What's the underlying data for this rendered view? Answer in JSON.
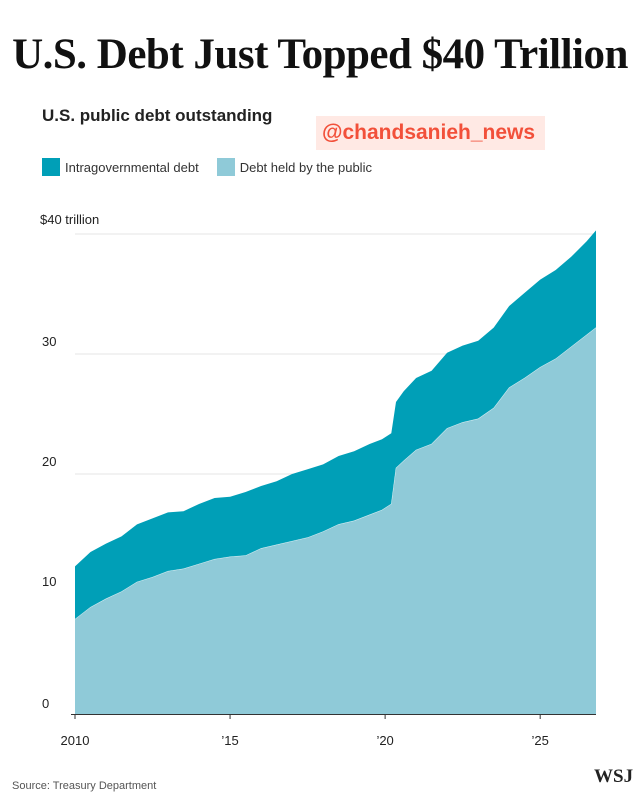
{
  "header": {
    "title": "U.S. Debt Just Topped $40 Trillion",
    "subtitle": "U.S. public debt outstanding"
  },
  "watermark": "@chandsanieh_news",
  "footer": {
    "source": "Source: Treasury Department",
    "logo": "WSJ"
  },
  "colors": {
    "intragovernmental": "#009fb7",
    "public": "#8fcad8",
    "grid": "#e6e6e6",
    "axis": "#333333"
  },
  "chart_data": {
    "type": "area",
    "stacked": true,
    "title": "U.S. public debt outstanding",
    "xlabel": "",
    "ylabel": "",
    "xlim": [
      2010,
      2026.8
    ],
    "ylim": [
      0,
      40
    ],
    "x_ticks": [
      2010,
      2015,
      2020,
      2025
    ],
    "x_tick_labels": [
      "2010",
      "’15",
      "’20",
      "’25"
    ],
    "y_ticks": [
      0,
      10,
      20,
      30,
      40
    ],
    "y_tick_labels": [
      "0",
      "10",
      "20",
      "30",
      "$40 trillion"
    ],
    "grid": true,
    "legend_position": "top-left",
    "legend": [
      "Intragovernmental debt",
      "Debt held by the public"
    ],
    "x": [
      2010.0,
      2010.5,
      2011.0,
      2011.5,
      2012.0,
      2012.5,
      2013.0,
      2013.5,
      2014.0,
      2014.5,
      2015.0,
      2015.5,
      2016.0,
      2016.5,
      2017.0,
      2017.5,
      2018.0,
      2018.5,
      2019.0,
      2019.5,
      2019.9,
      2020.2,
      2020.35,
      2020.6,
      2021.0,
      2021.5,
      2022.0,
      2022.5,
      2023.0,
      2023.5,
      2024.0,
      2024.5,
      2025.0,
      2025.5,
      2026.0,
      2026.5,
      2026.8
    ],
    "series": [
      {
        "name": "Debt held by the public",
        "values": [
          7.9,
          8.9,
          9.6,
          10.2,
          11.0,
          11.4,
          11.9,
          12.1,
          12.5,
          12.9,
          13.1,
          13.2,
          13.8,
          14.1,
          14.4,
          14.7,
          15.2,
          15.8,
          16.1,
          16.6,
          17.0,
          17.5,
          20.5,
          21.1,
          22.0,
          22.5,
          23.8,
          24.3,
          24.6,
          25.5,
          27.2,
          28.0,
          28.9,
          29.6,
          30.6,
          31.6,
          32.2
        ]
      },
      {
        "name": "Intragovernmental debt",
        "values": [
          4.4,
          4.6,
          4.6,
          4.6,
          4.8,
          4.9,
          4.9,
          4.8,
          5.0,
          5.1,
          5.0,
          5.3,
          5.2,
          5.3,
          5.6,
          5.7,
          5.6,
          5.7,
          5.8,
          5.9,
          5.9,
          5.9,
          5.5,
          5.8,
          6.0,
          6.1,
          6.3,
          6.4,
          6.5,
          6.7,
          6.8,
          7.1,
          7.3,
          7.4,
          7.5,
          7.8,
          8.1
        ]
      }
    ]
  }
}
